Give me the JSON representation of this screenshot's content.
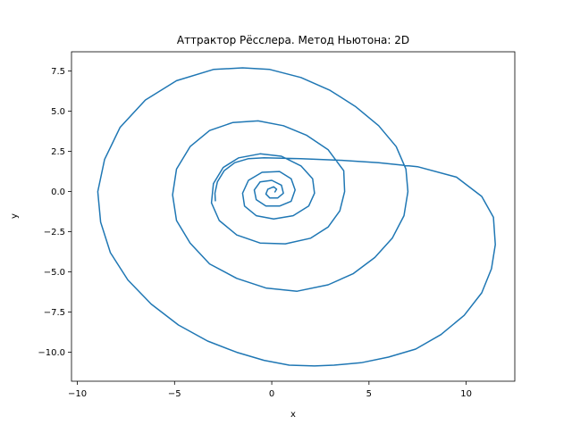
{
  "chart_data": {
    "type": "line",
    "title": "Аттрактор Рёсслера. Метод Ньютона: 2D",
    "xlabel": "x",
    "ylabel": "y",
    "xlim": [
      -10.3,
      12.5
    ],
    "ylim": [
      -11.8,
      8.7
    ],
    "xticks": [
      -10,
      -5,
      0,
      5,
      10
    ],
    "xtick_labels": [
      "−10",
      "−5",
      "0",
      "5",
      "10"
    ],
    "yticks": [
      -10,
      -7.5,
      -5,
      -2.5,
      0,
      2.5,
      5,
      7.5
    ],
    "ytick_labels": [
      "−10.0",
      "−7.5",
      "−5.0",
      "−2.5",
      "0.0",
      "2.5",
      "5.0",
      "7.5"
    ],
    "grid": false,
    "series": [
      {
        "color": "#1f77b4",
        "x": [
          -2.9,
          -2.92,
          -2.8,
          -2.45,
          -1.9,
          -1.2,
          -0.4,
          1.5,
          3.5,
          5.5,
          7.5,
          9.5,
          10.8,
          11.4,
          11.5,
          11.3,
          10.8,
          9.9,
          8.7,
          7.4,
          6.0,
          4.6,
          3.2,
          2.2,
          0.9,
          -0.4,
          -1.8,
          -3.3,
          -4.8,
          -6.2,
          -7.4,
          -8.3,
          -8.8,
          -8.95,
          -8.6,
          -7.8,
          -6.5,
          -4.9,
          -3.0,
          -1.5,
          -0.1,
          1.5,
          3.0,
          4.3,
          5.5,
          6.4,
          6.9,
          7.0,
          6.8,
          6.2,
          5.3,
          4.2,
          2.9,
          1.3,
          -0.3,
          -1.8,
          -3.2,
          -4.2,
          -4.9,
          -5.1,
          -4.9,
          -4.2,
          -3.2,
          -2.0,
          -0.7,
          0.6,
          1.8,
          2.9,
          3.7,
          3.75,
          3.5,
          2.9,
          2.0,
          0.7,
          -0.6,
          -1.8,
          -2.7,
          -3.1,
          -3.0,
          -2.5,
          -1.7,
          -0.6,
          0.5,
          1.5,
          2.1,
          2.2,
          1.9,
          1.1,
          0.1,
          -0.8,
          -1.4,
          -1.5,
          -1.2,
          -0.5,
          0.4,
          1.0,
          1.2,
          1.0,
          0.4,
          -0.3,
          -0.8,
          -0.9,
          -0.6,
          0.0,
          0.5,
          0.6,
          0.3,
          -0.1,
          -0.3,
          -0.2,
          0.1,
          0.25,
          0.15
        ],
        "y": [
          -0.6,
          -0.1,
          0.6,
          1.3,
          1.8,
          2.05,
          2.1,
          2.05,
          1.95,
          1.8,
          1.55,
          0.9,
          -0.3,
          -1.6,
          -3.3,
          -4.8,
          -6.3,
          -7.7,
          -8.9,
          -9.8,
          -10.3,
          -10.65,
          -10.8,
          -10.85,
          -10.8,
          -10.5,
          -10.0,
          -9.3,
          -8.3,
          -7.0,
          -5.5,
          -3.8,
          -1.9,
          0.0,
          2.0,
          4.0,
          5.7,
          6.9,
          7.6,
          7.7,
          7.6,
          7.1,
          6.3,
          5.3,
          4.1,
          2.8,
          1.4,
          0.0,
          -1.5,
          -2.9,
          -4.1,
          -5.1,
          -5.8,
          -6.2,
          -6.0,
          -5.4,
          -4.5,
          -3.2,
          -1.8,
          -0.2,
          1.4,
          2.8,
          3.8,
          4.3,
          4.4,
          4.1,
          3.5,
          2.6,
          1.3,
          0.0,
          -1.2,
          -2.2,
          -2.9,
          -3.25,
          -3.2,
          -2.7,
          -1.8,
          -0.7,
          0.5,
          1.5,
          2.1,
          2.35,
          2.2,
          1.6,
          0.8,
          -0.1,
          -0.9,
          -1.5,
          -1.7,
          -1.5,
          -0.9,
          -0.1,
          0.7,
          1.2,
          1.25,
          0.8,
          0.1,
          -0.6,
          -0.9,
          -0.9,
          -0.5,
          0.1,
          0.6,
          0.7,
          0.4,
          -0.1,
          -0.4,
          -0.4,
          -0.15,
          0.15,
          0.3,
          0.15,
          -0.05
        ]
      }
    ]
  }
}
